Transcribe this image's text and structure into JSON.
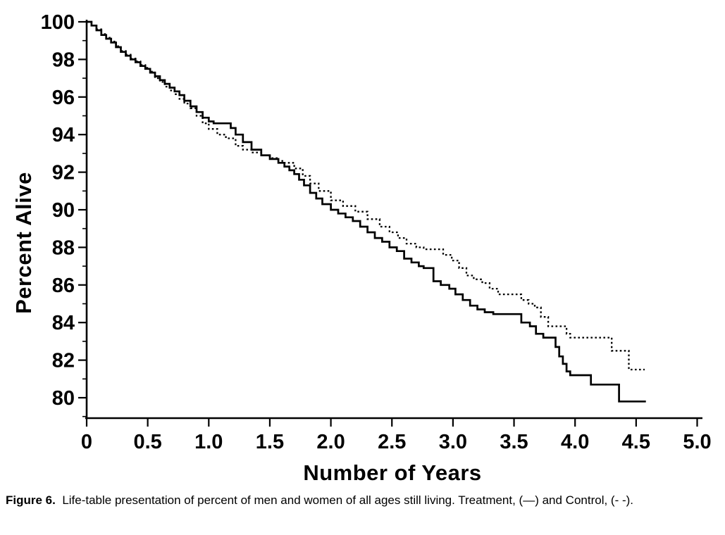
{
  "colors": {
    "ink": "#000000",
    "background": "#ffffff"
  },
  "caption": {
    "label": "Figure 6.",
    "text": "Life-table presentation of percent of men and women of all ages still living. Treatment, (—) and Control, (- -)."
  },
  "chart_data": {
    "type": "line",
    "subtype": "step-after-survival",
    "title": "",
    "xlabel": "Number of Years",
    "ylabel": "Percent Alive",
    "xlim": [
      0,
      5.0
    ],
    "ylim": [
      79,
      100.2
    ],
    "grid": false,
    "legend_position": "in-caption",
    "x_ticks": [
      0,
      0.5,
      1.0,
      1.5,
      2.0,
      2.5,
      3.0,
      3.5,
      4.0,
      4.5,
      5.0
    ],
    "x_tick_labels": [
      "0",
      "0.5",
      "1.0",
      "1.5",
      "2.0",
      "2.5",
      "3.0",
      "3.5",
      "4.0",
      "4.5",
      "5.0"
    ],
    "y_ticks": [
      100,
      98,
      96,
      94,
      92,
      90,
      88,
      86,
      84,
      82,
      80
    ],
    "y_minor_ticks": [
      99,
      97,
      95,
      93,
      91,
      89,
      87,
      85,
      83,
      81,
      79
    ],
    "series": [
      {
        "name": "Treatment",
        "style": "solid",
        "symbol": "(—)",
        "points": [
          [
            0.0,
            100.0
          ],
          [
            0.04,
            99.8
          ],
          [
            0.08,
            99.55
          ],
          [
            0.12,
            99.3
          ],
          [
            0.16,
            99.1
          ],
          [
            0.2,
            98.9
          ],
          [
            0.24,
            98.65
          ],
          [
            0.28,
            98.4
          ],
          [
            0.32,
            98.2
          ],
          [
            0.36,
            98.0
          ],
          [
            0.4,
            97.85
          ],
          [
            0.44,
            97.65
          ],
          [
            0.48,
            97.5
          ],
          [
            0.52,
            97.3
          ],
          [
            0.56,
            97.1
          ],
          [
            0.6,
            96.9
          ],
          [
            0.64,
            96.7
          ],
          [
            0.68,
            96.5
          ],
          [
            0.72,
            96.3
          ],
          [
            0.76,
            96.1
          ],
          [
            0.8,
            95.8
          ],
          [
            0.85,
            95.5
          ],
          [
            0.9,
            95.2
          ],
          [
            0.95,
            94.9
          ],
          [
            1.0,
            94.7
          ],
          [
            1.04,
            94.6
          ],
          [
            1.18,
            94.35
          ],
          [
            1.22,
            94.0
          ],
          [
            1.28,
            93.6
          ],
          [
            1.35,
            93.2
          ],
          [
            1.43,
            92.9
          ],
          [
            1.5,
            92.7
          ],
          [
            1.57,
            92.5
          ],
          [
            1.62,
            92.3
          ],
          [
            1.66,
            92.1
          ],
          [
            1.7,
            91.9
          ],
          [
            1.74,
            91.6
          ],
          [
            1.78,
            91.3
          ],
          [
            1.83,
            90.9
          ],
          [
            1.88,
            90.6
          ],
          [
            1.93,
            90.3
          ],
          [
            2.0,
            90.0
          ],
          [
            2.06,
            89.8
          ],
          [
            2.12,
            89.6
          ],
          [
            2.18,
            89.4
          ],
          [
            2.24,
            89.1
          ],
          [
            2.3,
            88.8
          ],
          [
            2.36,
            88.5
          ],
          [
            2.42,
            88.3
          ],
          [
            2.48,
            88.0
          ],
          [
            2.54,
            87.8
          ],
          [
            2.6,
            87.4
          ],
          [
            2.66,
            87.2
          ],
          [
            2.72,
            87.0
          ],
          [
            2.76,
            86.9
          ],
          [
            2.84,
            86.2
          ],
          [
            2.9,
            86.0
          ],
          [
            2.97,
            85.8
          ],
          [
            3.02,
            85.5
          ],
          [
            3.08,
            85.2
          ],
          [
            3.14,
            84.9
          ],
          [
            3.2,
            84.7
          ],
          [
            3.26,
            84.55
          ],
          [
            3.33,
            84.45
          ],
          [
            3.56,
            84.0
          ],
          [
            3.63,
            83.8
          ],
          [
            3.68,
            83.4
          ],
          [
            3.74,
            83.2
          ],
          [
            3.84,
            82.7
          ],
          [
            3.87,
            82.2
          ],
          [
            3.9,
            81.8
          ],
          [
            3.93,
            81.4
          ],
          [
            3.96,
            81.2
          ],
          [
            4.13,
            80.7
          ],
          [
            4.36,
            79.8
          ],
          [
            4.58,
            79.8
          ]
        ]
      },
      {
        "name": "Control",
        "style": "dashed",
        "symbol": "(- -)",
        "points": [
          [
            0.0,
            100.0
          ],
          [
            0.04,
            99.8
          ],
          [
            0.08,
            99.6
          ],
          [
            0.12,
            99.35
          ],
          [
            0.16,
            99.15
          ],
          [
            0.2,
            98.95
          ],
          [
            0.24,
            98.7
          ],
          [
            0.28,
            98.45
          ],
          [
            0.32,
            98.25
          ],
          [
            0.36,
            98.05
          ],
          [
            0.4,
            97.9
          ],
          [
            0.44,
            97.7
          ],
          [
            0.48,
            97.55
          ],
          [
            0.52,
            97.35
          ],
          [
            0.56,
            97.0
          ],
          [
            0.6,
            96.8
          ],
          [
            0.64,
            96.55
          ],
          [
            0.68,
            96.35
          ],
          [
            0.72,
            96.15
          ],
          [
            0.76,
            95.9
          ],
          [
            0.8,
            95.65
          ],
          [
            0.85,
            95.4
          ],
          [
            0.9,
            95.0
          ],
          [
            0.95,
            94.6
          ],
          [
            1.0,
            94.3
          ],
          [
            1.07,
            94.0
          ],
          [
            1.14,
            93.8
          ],
          [
            1.22,
            93.4
          ],
          [
            1.28,
            93.2
          ],
          [
            1.35,
            93.05
          ],
          [
            1.43,
            92.9
          ],
          [
            1.5,
            92.75
          ],
          [
            1.57,
            92.6
          ],
          [
            1.62,
            92.5
          ],
          [
            1.7,
            92.2
          ],
          [
            1.77,
            91.8
          ],
          [
            1.83,
            91.4
          ],
          [
            1.9,
            91.0
          ],
          [
            2.0,
            90.5
          ],
          [
            2.1,
            90.2
          ],
          [
            2.2,
            89.9
          ],
          [
            2.3,
            89.5
          ],
          [
            2.4,
            89.1
          ],
          [
            2.48,
            88.8
          ],
          [
            2.55,
            88.5
          ],
          [
            2.62,
            88.2
          ],
          [
            2.7,
            88.0
          ],
          [
            2.76,
            87.9
          ],
          [
            2.92,
            87.6
          ],
          [
            2.99,
            87.3
          ],
          [
            3.05,
            86.9
          ],
          [
            3.11,
            86.5
          ],
          [
            3.17,
            86.3
          ],
          [
            3.24,
            86.1
          ],
          [
            3.3,
            85.8
          ],
          [
            3.37,
            85.5
          ],
          [
            3.56,
            85.2
          ],
          [
            3.62,
            85.0
          ],
          [
            3.67,
            84.8
          ],
          [
            3.72,
            84.3
          ],
          [
            3.78,
            83.8
          ],
          [
            3.93,
            83.4
          ],
          [
            3.96,
            83.2
          ],
          [
            4.3,
            82.5
          ],
          [
            4.44,
            81.5
          ],
          [
            4.57,
            81.5
          ]
        ]
      }
    ],
    "caption_label": "Figure 6.",
    "caption_text": "Life-table presentation of percent of men and women of all ages still living. Treatment, (—) and Control, (- -)."
  }
}
